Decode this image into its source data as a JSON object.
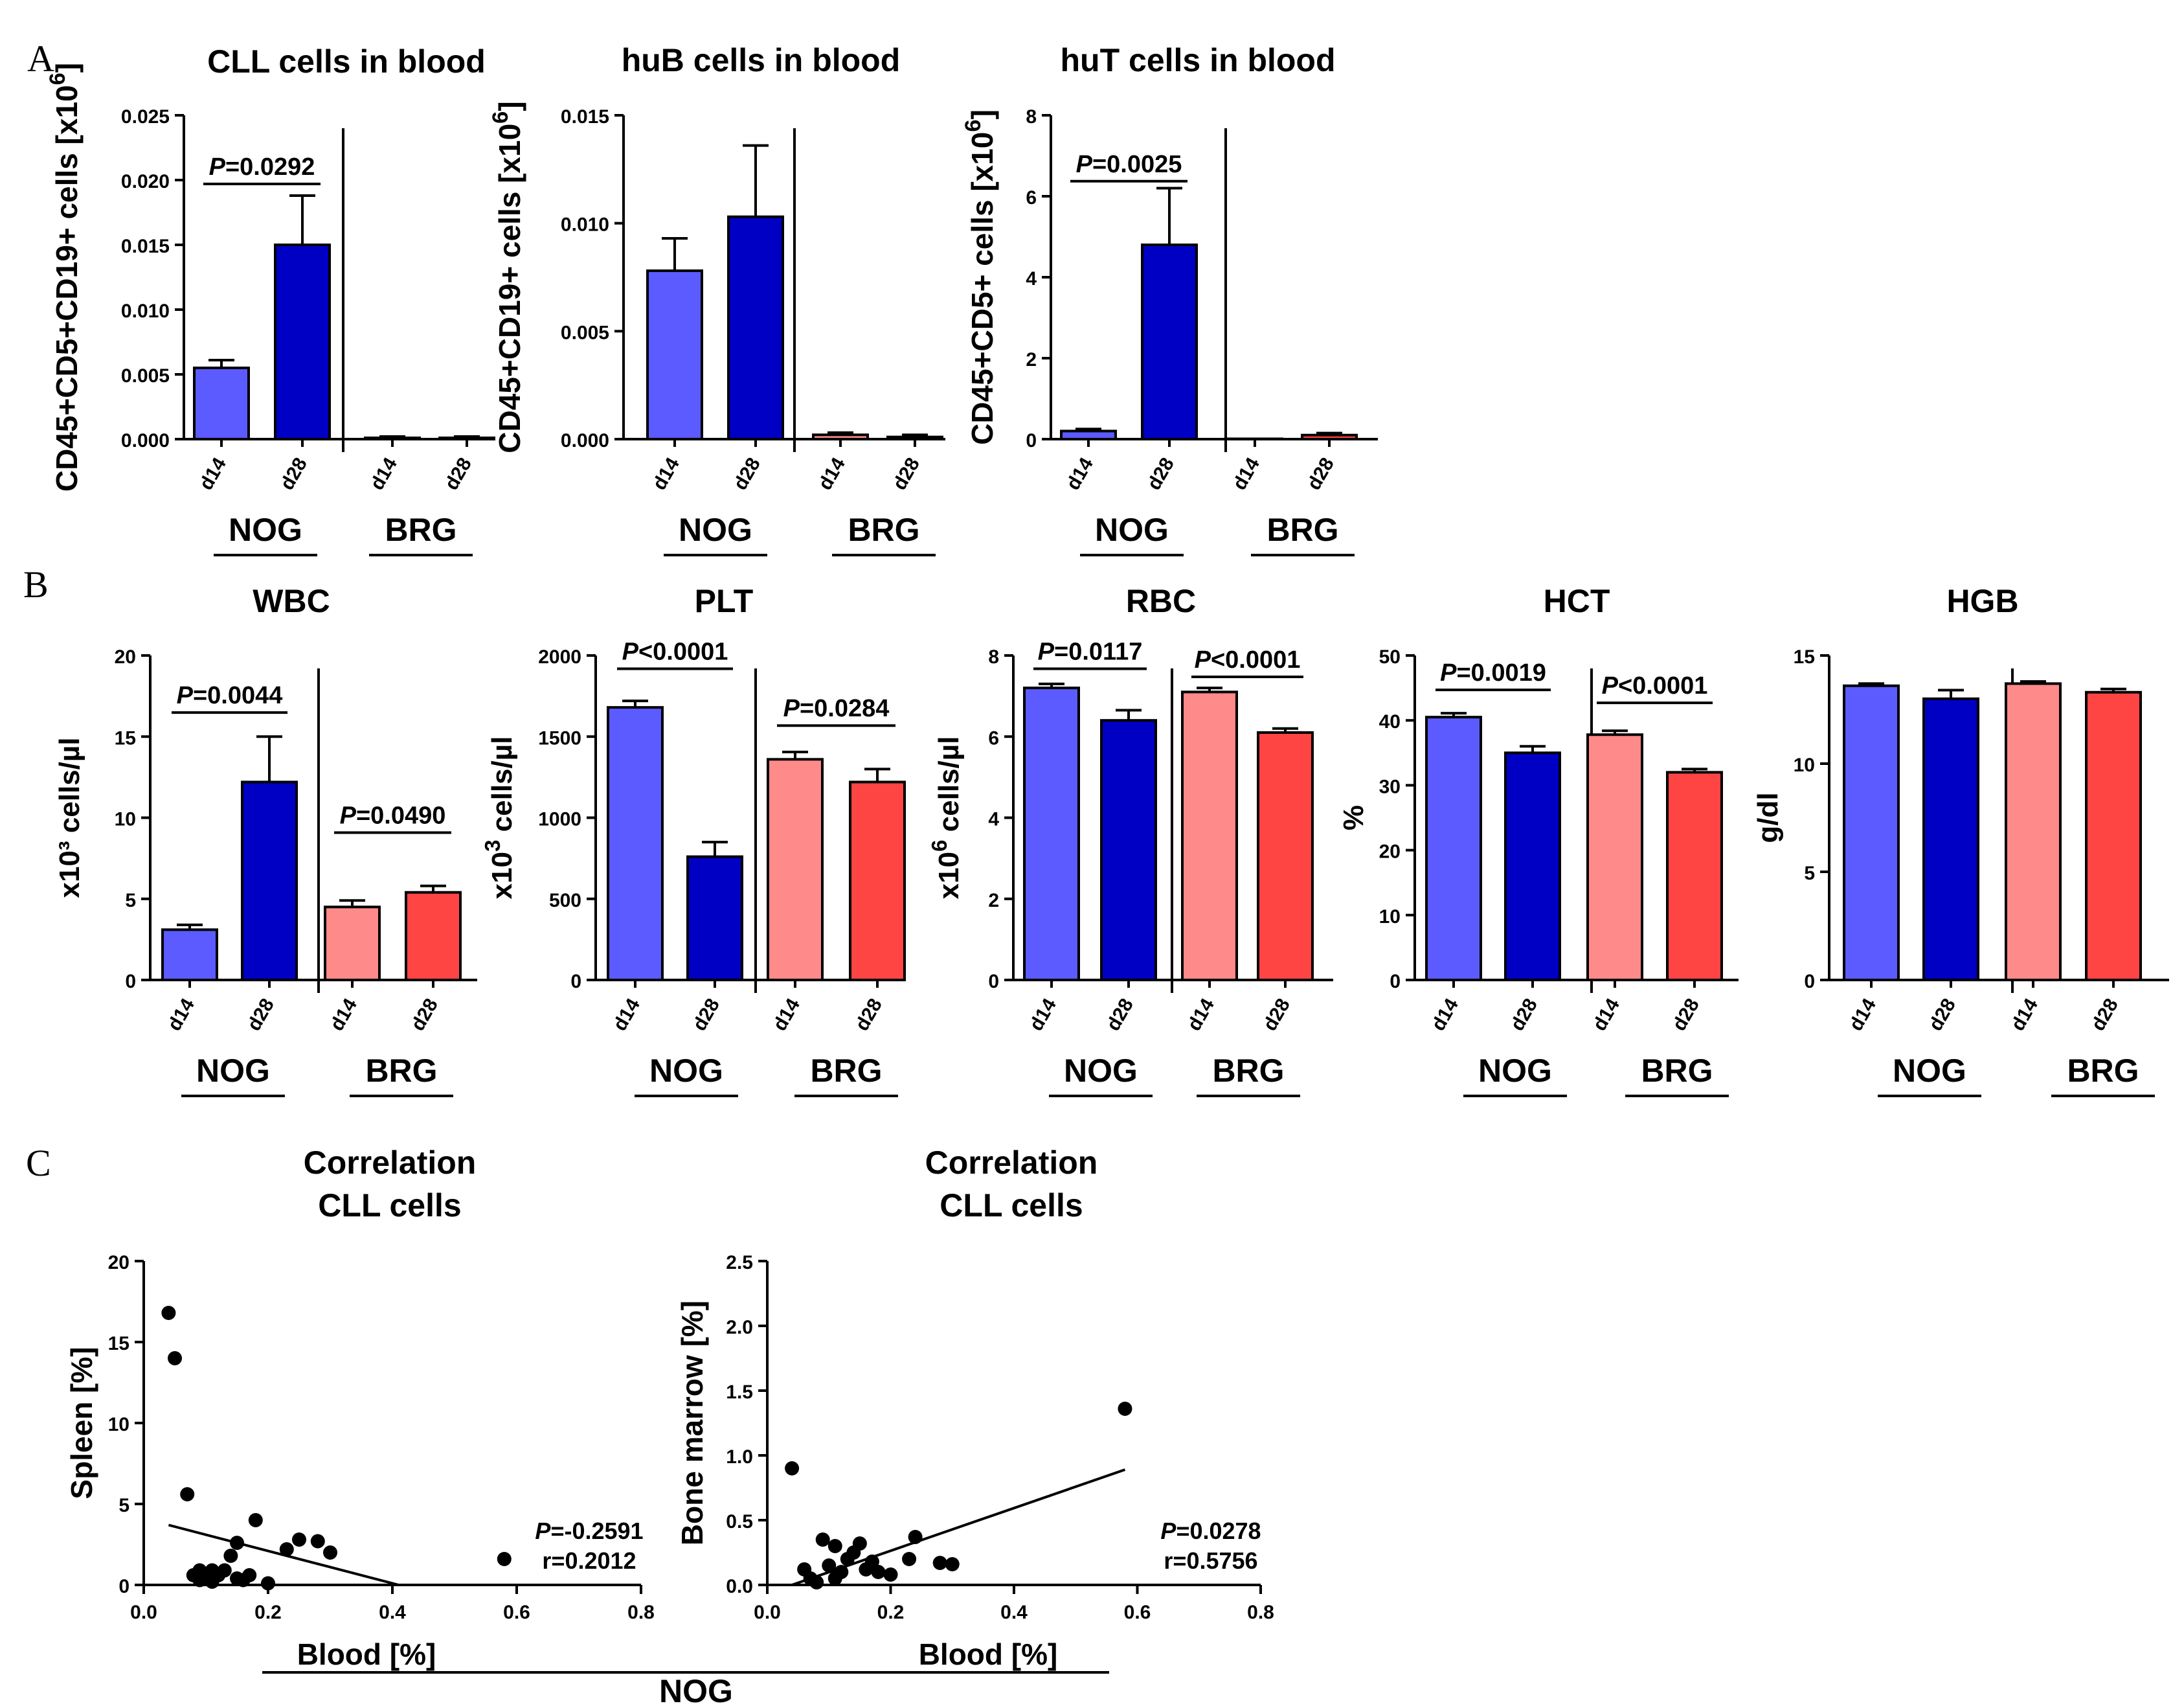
{
  "panels": {
    "a": "A",
    "b": "B",
    "c": "C"
  },
  "colors": {
    "nog_d14": "#5b5bff",
    "nog_d28": "#0000c4",
    "brg_d14": "#ff8a8a",
    "brg_d28": "#ff4444",
    "axis": "#000000"
  },
  "groups": {
    "nog": "NOG",
    "brg": "BRG"
  },
  "charts_a": [
    {
      "id": "a1",
      "title": "CLL cells in blood",
      "ylabel": "CD45+CD5+CD19+ cells [x10",
      "ylabel_sup": "6",
      "ylabel_end": "]",
      "ylim": [
        0,
        0.025
      ],
      "yticks": [
        "0.000",
        "0.005",
        "0.010",
        "0.015",
        "0.020",
        "0.025"
      ],
      "categories": [
        "d14",
        "d28",
        "d14",
        "d28"
      ],
      "values": [
        0.0055,
        0.015,
        0.0001,
        0.0001
      ],
      "errors": [
        0.0006,
        0.0038,
        0.0001,
        0.0001
      ],
      "pvals": [
        {
          "a": 0,
          "b": 1,
          "label": "=0.0292",
          "yval": 0.0201
        }
      ]
    },
    {
      "id": "a2",
      "title": "huB cells in blood",
      "ylabel": "CD45+CD19+ cells [x10",
      "ylabel_sup": "6",
      "ylabel_end": "]",
      "ylim": [
        0,
        0.015
      ],
      "yticks": [
        "0.000",
        "0.005",
        "0.010",
        "0.015"
      ],
      "categories": [
        "d14",
        "d28",
        "d14",
        "d28"
      ],
      "values": [
        0.0078,
        0.0103,
        0.0002,
        0.0001
      ],
      "errors": [
        0.0015,
        0.0033,
        0.0001,
        0.0001
      ],
      "pvals": []
    },
    {
      "id": "a3",
      "title": "huT cells in blood",
      "ylabel": "CD45+CD5+ cells [x10",
      "ylabel_sup": "6",
      "ylabel_end": "]",
      "ylim": [
        0,
        8
      ],
      "yticks": [
        "0",
        "2",
        "4",
        "6",
        "8"
      ],
      "categories": [
        "d14",
        "d28",
        "d14",
        "d28"
      ],
      "values": [
        0.2,
        4.8,
        0.0,
        0.1
      ],
      "errors": [
        0.05,
        1.4,
        0.0,
        0.05
      ],
      "pvals": [
        {
          "a": 0,
          "b": 1,
          "label": "=0.0025",
          "yval": 6.5
        }
      ]
    }
  ],
  "charts_b": [
    {
      "id": "b1",
      "title": "WBC",
      "ylabel": "x10³ cells/µl",
      "ylabel_sup": "",
      "ylabel_end": "",
      "ylim": [
        0,
        20
      ],
      "yticks": [
        "0",
        "5",
        "10",
        "15",
        "20"
      ],
      "categories": [
        "d14",
        "d28",
        "d14",
        "d28"
      ],
      "values": [
        3.1,
        12.2,
        4.5,
        5.4
      ],
      "errors": [
        0.3,
        2.8,
        0.4,
        0.4
      ],
      "pvals": [
        {
          "a": 0,
          "b": 1,
          "label": "=0.0044",
          "yval": 16.8
        },
        {
          "a": 2,
          "b": 3,
          "label": "=0.0490",
          "yval": 9.4
        }
      ]
    },
    {
      "id": "b2",
      "title": "PLT",
      "ylabel": "x10",
      "ylabel_sup": "3",
      "ylabel_end": " cells/µl",
      "ylim": [
        0,
        2000
      ],
      "yticks": [
        "0",
        "500",
        "1000",
        "1500",
        "2000"
      ],
      "categories": [
        "d14",
        "d28",
        "d14",
        "d28"
      ],
      "values": [
        1680,
        760,
        1360,
        1220
      ],
      "errors": [
        40,
        90,
        45,
        80
      ],
      "pvals": [
        {
          "a": 0,
          "b": 1,
          "label": "<0.0001",
          "yval": 1950
        },
        {
          "a": 2,
          "b": 3,
          "label": "=0.0284",
          "yval": 1600
        }
      ]
    },
    {
      "id": "b3",
      "title": "RBC",
      "ylabel": "x10",
      "ylabel_sup": "6",
      "ylabel_end": " cells/µl",
      "ylim": [
        0,
        8
      ],
      "yticks": [
        "0",
        "2",
        "4",
        "6",
        "8"
      ],
      "categories": [
        "d14",
        "d28",
        "d14",
        "d28"
      ],
      "values": [
        7.2,
        6.4,
        7.1,
        6.1
      ],
      "errors": [
        0.1,
        0.25,
        0.1,
        0.1
      ],
      "pvals": [
        {
          "a": 0,
          "b": 1,
          "label": "=0.0117",
          "yval": 7.8
        },
        {
          "a": 2,
          "b": 3,
          "label": "<0.0001",
          "yval": 7.6
        }
      ]
    },
    {
      "id": "b4",
      "title": "HCT",
      "ylabel": "%",
      "ylabel_sup": "",
      "ylabel_end": "",
      "ylim": [
        0,
        50
      ],
      "yticks": [
        "0",
        "10",
        "20",
        "30",
        "40",
        "50"
      ],
      "categories": [
        "d14",
        "d28",
        "d14",
        "d28"
      ],
      "values": [
        40.5,
        35.0,
        37.8,
        32.0
      ],
      "errors": [
        0.6,
        1.0,
        0.6,
        0.5
      ],
      "pvals": [
        {
          "a": 0,
          "b": 1,
          "label": "=0.0019",
          "yval": 45.5
        },
        {
          "a": 2,
          "b": 3,
          "label": "<0.0001",
          "yval": 43.5
        }
      ]
    },
    {
      "id": "b5",
      "title": "HGB",
      "ylabel": "g/dl",
      "ylabel_sup": "",
      "ylabel_end": "",
      "ylim": [
        0,
        15
      ],
      "yticks": [
        "0",
        "5",
        "10",
        "15"
      ],
      "categories": [
        "d14",
        "d28",
        "d14",
        "d28"
      ],
      "values": [
        13.6,
        13.0,
        13.7,
        13.3
      ],
      "errors": [
        0.1,
        0.4,
        0.1,
        0.15
      ],
      "pvals": []
    }
  ],
  "charts_c": [
    {
      "id": "c1",
      "title1": "Correlation",
      "title2": "CLL cells",
      "ylabel": "Spleen [%]",
      "xlabel": "Blood [%]",
      "xlim": [
        0,
        0.8
      ],
      "ylim": [
        0,
        20
      ],
      "xticks": [
        "0.0",
        "0.2",
        "0.4",
        "0.6",
        "0.8"
      ],
      "yticks": [
        "0",
        "5",
        "10",
        "15",
        "20"
      ],
      "points": [
        [
          0.04,
          16.8
        ],
        [
          0.05,
          14.0
        ],
        [
          0.07,
          5.6
        ],
        [
          0.08,
          0.6
        ],
        [
          0.09,
          0.3
        ],
        [
          0.09,
          0.9
        ],
        [
          0.1,
          0.5
        ],
        [
          0.11,
          0.9
        ],
        [
          0.11,
          0.2
        ],
        [
          0.12,
          0.6
        ],
        [
          0.13,
          0.9
        ],
        [
          0.14,
          1.8
        ],
        [
          0.15,
          0.4
        ],
        [
          0.15,
          2.6
        ],
        [
          0.16,
          0.3
        ],
        [
          0.17,
          0.6
        ],
        [
          0.18,
          4.0
        ],
        [
          0.2,
          0.1
        ],
        [
          0.23,
          2.2
        ],
        [
          0.25,
          2.8
        ],
        [
          0.28,
          2.7
        ],
        [
          0.3,
          2.0
        ],
        [
          0.58,
          1.6
        ]
      ],
      "fit": [
        [
          0.04,
          3.7
        ],
        [
          0.41,
          0.0
        ]
      ],
      "stat_p": "=-0.2591",
      "stat_r": "r=0.2012"
    },
    {
      "id": "c2",
      "title1": "Correlation",
      "title2": "CLL cells",
      "ylabel": "Bone marrow [%]",
      "xlabel": "Blood [%]",
      "xlim": [
        0,
        0.8
      ],
      "ylim": [
        0,
        2.5
      ],
      "xticks": [
        "0.0",
        "0.2",
        "0.4",
        "0.6",
        "0.8"
      ],
      "yticks": [
        "0.0",
        "0.5",
        "1.0",
        "1.5",
        "2.0",
        "2.5"
      ],
      "points": [
        [
          0.04,
          0.9
        ],
        [
          0.06,
          0.12
        ],
        [
          0.07,
          0.05
        ],
        [
          0.08,
          0.02
        ],
        [
          0.09,
          0.35
        ],
        [
          0.1,
          0.15
        ],
        [
          0.11,
          0.3
        ],
        [
          0.11,
          0.05
        ],
        [
          0.12,
          0.1
        ],
        [
          0.13,
          0.2
        ],
        [
          0.14,
          0.25
        ],
        [
          0.15,
          0.32
        ],
        [
          0.16,
          0.12
        ],
        [
          0.17,
          0.18
        ],
        [
          0.18,
          0.1
        ],
        [
          0.2,
          0.08
        ],
        [
          0.23,
          0.2
        ],
        [
          0.24,
          0.37
        ],
        [
          0.28,
          0.17
        ],
        [
          0.3,
          0.16
        ],
        [
          0.58,
          1.36
        ]
      ],
      "fit": [
        [
          0.04,
          0.0
        ],
        [
          0.58,
          0.89
        ]
      ],
      "stat_p": "=0.0278",
      "stat_r": "r=0.5756"
    }
  ],
  "c_footer": "NOG"
}
